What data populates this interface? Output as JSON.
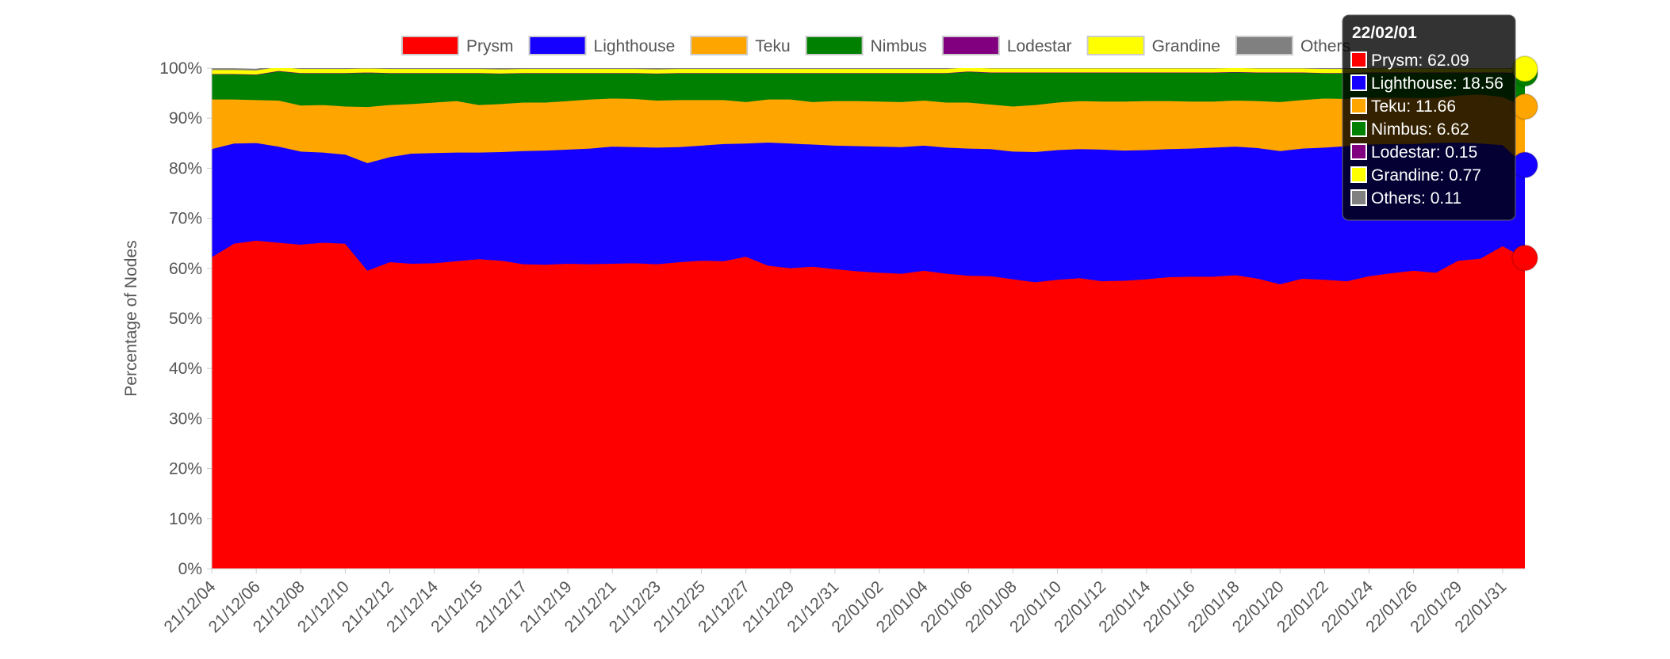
{
  "chart_data": {
    "type": "stacked-area",
    "y_axis_label": "Percentage of Nodes",
    "categories": [
      "21/12/04",
      null,
      "21/12/06",
      null,
      "21/12/08",
      null,
      "21/12/10",
      null,
      "21/12/12",
      null,
      "21/12/14",
      null,
      "21/12/15",
      null,
      "21/12/17",
      null,
      "21/12/19",
      null,
      "21/12/21",
      null,
      "21/12/23",
      null,
      "21/12/25",
      null,
      "21/12/27",
      null,
      "21/12/29",
      null,
      "21/12/31",
      null,
      "22/01/02",
      null,
      "22/01/04",
      null,
      "22/01/06",
      null,
      "22/01/08",
      null,
      "22/01/10",
      null,
      "22/01/12",
      null,
      "22/01/14",
      null,
      "22/01/16",
      null,
      "22/01/18",
      null,
      "22/01/20",
      null,
      "22/01/22",
      null,
      "22/01/24",
      null,
      "22/01/26",
      null,
      "22/01/29",
      null,
      "22/01/31",
      "22/02/01"
    ],
    "series": [
      {
        "name": "Prysm",
        "color": "#ff0000",
        "values": [
          62.3,
          65.0,
          65.6,
          65.2,
          64.8,
          65.2,
          65.0,
          59.6,
          61.3,
          61.0,
          61.1,
          61.5,
          61.9,
          61.6,
          60.9,
          60.8,
          61.0,
          60.9,
          61.0,
          61.1,
          60.9,
          61.3,
          61.6,
          61.5,
          62.4,
          60.6,
          60.1,
          60.4,
          59.9,
          59.5,
          59.2,
          59.0,
          59.6,
          59.0,
          58.6,
          58.5,
          57.9,
          57.3,
          57.8,
          58.1,
          57.5,
          57.6,
          57.9,
          58.3,
          58.4,
          58.4,
          58.7,
          58.0,
          56.9,
          58.0,
          57.8,
          57.5,
          58.5,
          59.1,
          59.6,
          59.2,
          61.6,
          62.0,
          64.5,
          62.09
        ]
      },
      {
        "name": "Lighthouse",
        "color": "#1500ff",
        "values": [
          21.6,
          20.0,
          19.5,
          19.2,
          18.6,
          18.0,
          17.8,
          21.5,
          21.0,
          22.0,
          22.0,
          21.7,
          21.3,
          21.7,
          22.6,
          22.8,
          22.8,
          23.1,
          23.4,
          23.2,
          23.3,
          23.0,
          23.0,
          23.4,
          22.6,
          24.6,
          24.9,
          24.4,
          24.7,
          25.0,
          25.2,
          25.3,
          25.0,
          25.2,
          25.4,
          25.4,
          25.5,
          26.0,
          25.9,
          25.8,
          26.3,
          26.0,
          25.8,
          25.6,
          25.6,
          25.8,
          25.7,
          26.1,
          26.6,
          26.0,
          26.4,
          27.0,
          26.3,
          25.8,
          25.3,
          25.9,
          23.6,
          23.0,
          20.2,
          18.56
        ]
      },
      {
        "name": "Teku",
        "color": "#ffa500",
        "values": [
          9.9,
          8.8,
          8.6,
          9.2,
          9.2,
          9.5,
          9.6,
          11.2,
          10.4,
          9.9,
          10.1,
          10.3,
          9.5,
          9.6,
          9.7,
          9.6,
          9.7,
          9.8,
          9.6,
          9.6,
          9.4,
          9.4,
          9.1,
          8.8,
          8.3,
          8.6,
          8.8,
          8.5,
          8.9,
          9.0,
          9.0,
          9.0,
          9.0,
          9.0,
          9.2,
          8.9,
          9.0,
          9.4,
          9.5,
          9.6,
          9.6,
          9.8,
          9.8,
          9.6,
          9.4,
          9.2,
          9.2,
          9.4,
          9.8,
          9.7,
          9.8,
          9.4,
          9.3,
          9.3,
          9.2,
          9.0,
          9.4,
          9.8,
          9.6,
          11.66
        ]
      },
      {
        "name": "Nimbus",
        "color": "#008000",
        "values": [
          5.0,
          5.0,
          5.0,
          5.8,
          6.4,
          6.3,
          6.6,
          6.8,
          6.3,
          6.1,
          5.8,
          5.5,
          6.3,
          6.0,
          5.8,
          5.8,
          5.5,
          5.2,
          5.0,
          5.1,
          5.3,
          5.3,
          5.3,
          5.3,
          5.7,
          5.2,
          5.2,
          5.7,
          5.5,
          5.5,
          5.6,
          5.7,
          5.4,
          5.8,
          6.1,
          6.3,
          6.7,
          6.4,
          5.9,
          5.6,
          5.7,
          5.7,
          5.6,
          5.6,
          5.7,
          5.7,
          5.6,
          5.6,
          5.8,
          5.4,
          5.0,
          5.1,
          5.0,
          4.9,
          5.0,
          5.0,
          4.5,
          4.3,
          4.8,
          6.62
        ]
      },
      {
        "name": "Lodestar",
        "color": "#800080",
        "values": [
          0.1,
          0.1,
          0.1,
          0.1,
          0.1,
          0.1,
          0.1,
          0.1,
          0.1,
          0.1,
          0.1,
          0.1,
          0.1,
          0.1,
          0.1,
          0.1,
          0.1,
          0.1,
          0.1,
          0.1,
          0.1,
          0.1,
          0.1,
          0.1,
          0.1,
          0.1,
          0.1,
          0.1,
          0.1,
          0.1,
          0.1,
          0.1,
          0.1,
          0.1,
          0.1,
          0.1,
          0.1,
          0.1,
          0.1,
          0.1,
          0.1,
          0.1,
          0.1,
          0.1,
          0.1,
          0.1,
          0.1,
          0.1,
          0.1,
          0.1,
          0.1,
          0.1,
          0.1,
          0.1,
          0.1,
          0.1,
          0.1,
          0.1,
          0.1,
          0.15
        ]
      },
      {
        "name": "Grandine",
        "color": "#ffff00",
        "values": [
          0.8,
          0.8,
          0.8,
          0.8,
          0.8,
          0.8,
          0.8,
          0.8,
          0.8,
          0.8,
          0.8,
          0.8,
          0.8,
          0.8,
          0.8,
          0.8,
          0.8,
          0.8,
          0.8,
          0.8,
          0.8,
          0.8,
          0.8,
          0.8,
          0.8,
          0.8,
          0.8,
          0.8,
          0.8,
          0.8,
          0.8,
          0.8,
          0.8,
          0.8,
          0.8,
          0.8,
          0.8,
          0.8,
          0.8,
          0.8,
          0.8,
          0.8,
          0.8,
          0.8,
          0.8,
          0.8,
          0.8,
          0.8,
          0.8,
          0.8,
          0.8,
          0.8,
          0.8,
          0.8,
          0.8,
          0.8,
          0.8,
          0.8,
          0.8,
          0.77
        ]
      },
      {
        "name": "Others",
        "color": "#808080",
        "values": [
          0.2,
          0.2,
          0.2,
          0.2,
          0.2,
          0.2,
          0.2,
          0.2,
          0.2,
          0.2,
          0.2,
          0.2,
          0.2,
          0.2,
          0.2,
          0.2,
          0.2,
          0.2,
          0.2,
          0.2,
          0.2,
          0.2,
          0.2,
          0.2,
          0.2,
          0.2,
          0.2,
          0.2,
          0.2,
          0.2,
          0.2,
          0.2,
          0.2,
          0.2,
          0.2,
          0.2,
          0.2,
          0.2,
          0.2,
          0.2,
          0.2,
          0.2,
          0.2,
          0.2,
          0.2,
          0.2,
          0.2,
          0.2,
          0.2,
          0.2,
          0.2,
          0.2,
          0.2,
          0.2,
          0.2,
          0.2,
          0.2,
          0.2,
          0.2,
          0.11
        ]
      }
    ],
    "ylim": [
      0,
      100
    ],
    "yticks": [
      {
        "value": 0,
        "label": "0%"
      },
      {
        "value": 10,
        "label": "10%"
      },
      {
        "value": 20,
        "label": "20%"
      },
      {
        "value": 30,
        "label": "30%"
      },
      {
        "value": 40,
        "label": "40%"
      },
      {
        "value": 50,
        "label": "50%"
      },
      {
        "value": 60,
        "label": "60%"
      },
      {
        "value": 70,
        "label": "70%"
      },
      {
        "value": 80,
        "label": "80%"
      },
      {
        "value": 90,
        "label": "90%"
      },
      {
        "value": 100,
        "label": "100%"
      }
    ],
    "legend": "top",
    "tooltip_index": 59
  }
}
